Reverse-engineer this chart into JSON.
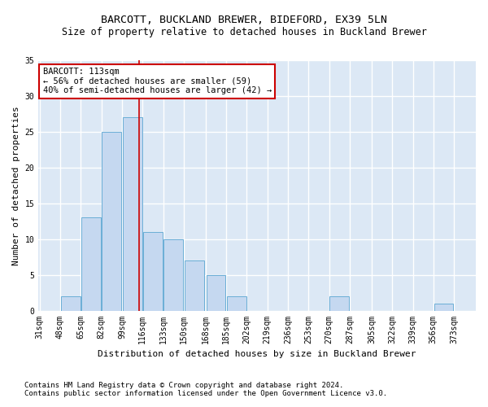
{
  "title": "BARCOTT, BUCKLAND BREWER, BIDEFORD, EX39 5LN",
  "subtitle": "Size of property relative to detached houses in Buckland Brewer",
  "xlabel": "Distribution of detached houses by size in Buckland Brewer",
  "ylabel": "Number of detached properties",
  "footnote1": "Contains HM Land Registry data © Crown copyright and database right 2024.",
  "footnote2": "Contains public sector information licensed under the Open Government Licence v3.0.",
  "bins": [
    31,
    48,
    65,
    82,
    99,
    116,
    133,
    150,
    168,
    185,
    202,
    219,
    236,
    253,
    270,
    287,
    305,
    322,
    339,
    356,
    373
  ],
  "values": [
    0,
    2,
    13,
    25,
    27,
    11,
    10,
    7,
    5,
    2,
    0,
    0,
    0,
    0,
    2,
    0,
    0,
    0,
    0,
    1,
    0
  ],
  "bar_color": "#c5d8f0",
  "bar_edge_color": "#6aaed6",
  "vline_x": 113,
  "vline_color": "#cc0000",
  "annotation_line1": "BARCOTT: 113sqm",
  "annotation_line2": "← 56% of detached houses are smaller (59)",
  "annotation_line3": "40% of semi-detached houses are larger (42) →",
  "annotation_box_color": "#ffffff",
  "annotation_box_edge_color": "#cc0000",
  "ylim": [
    0,
    35
  ],
  "yticks": [
    0,
    5,
    10,
    15,
    20,
    25,
    30,
    35
  ],
  "background_color": "#dce8f5",
  "grid_color": "#ffffff",
  "title_fontsize": 9.5,
  "subtitle_fontsize": 8.5,
  "axis_label_fontsize": 8,
  "tick_fontsize": 7,
  "annotation_fontsize": 7.5,
  "footnote_fontsize": 6.5
}
